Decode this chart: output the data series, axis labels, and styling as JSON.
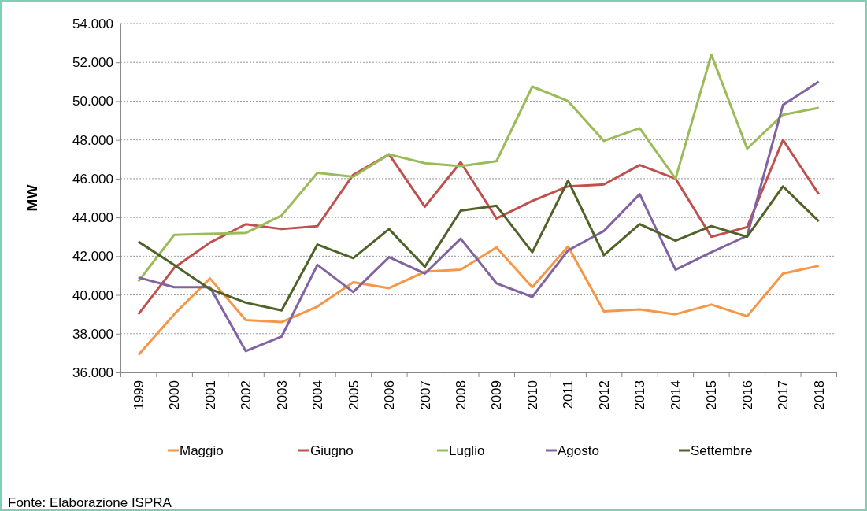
{
  "chart_data": {
    "type": "line",
    "ylabel": "MW",
    "categories": [
      "1999",
      "2000",
      "2001",
      "2002",
      "2003",
      "2004",
      "2005",
      "2006",
      "2007",
      "2008",
      "2009",
      "2010",
      "2011",
      "2012",
      "2013",
      "2014",
      "2015",
      "2016",
      "2017",
      "2018"
    ],
    "series": [
      {
        "name": "Maggio",
        "color": "#f79646",
        "values": [
          36900,
          39000,
          40850,
          38700,
          38600,
          39400,
          40650,
          40350,
          41200,
          41300,
          42450,
          40400,
          42500,
          39150,
          39250,
          39000,
          39500,
          38900,
          41100,
          41500
        ]
      },
      {
        "name": "Giugno",
        "color": "#c0504d",
        "values": [
          39000,
          41400,
          42700,
          43650,
          43400,
          43550,
          46200,
          47250,
          44550,
          46850,
          43950,
          44850,
          45600,
          45700,
          46700,
          46000,
          43000,
          43500,
          48000,
          45200
        ]
      },
      {
        "name": "Luglio",
        "color": "#9bbb59",
        "values": [
          40700,
          43100,
          43150,
          43200,
          44100,
          46300,
          46100,
          47250,
          46800,
          46650,
          46900,
          50750,
          50000,
          47950,
          48600,
          46000,
          52400,
          47550,
          49300,
          49650
        ]
      },
      {
        "name": "Agosto",
        "color": "#8064a2",
        "values": [
          40900,
          40400,
          40400,
          37100,
          37850,
          41550,
          40150,
          41950,
          41100,
          42900,
          40600,
          39900,
          42300,
          43300,
          45200,
          41300,
          42200,
          43050,
          49800,
          51000
        ]
      },
      {
        "name": "Settembre",
        "color": "#4f6228",
        "values": [
          42750,
          41550,
          40300,
          39600,
          39200,
          42600,
          41900,
          43400,
          41450,
          44350,
          44600,
          42200,
          45900,
          42050,
          43650,
          42800,
          43550,
          43000,
          45600,
          43800
        ]
      }
    ],
    "ylim": [
      36000,
      54000
    ],
    "yticks": [
      {
        "value": 36000,
        "label": "36.000"
      },
      {
        "value": 38000,
        "label": "38.000"
      },
      {
        "value": 40000,
        "label": "40.000"
      },
      {
        "value": 42000,
        "label": "42.000"
      },
      {
        "value": 44000,
        "label": "44.000"
      },
      {
        "value": 46000,
        "label": "46.000"
      },
      {
        "value": 48000,
        "label": "48.000"
      },
      {
        "value": 50000,
        "label": "50.000"
      },
      {
        "value": 52000,
        "label": "52.000"
      },
      {
        "value": 54000,
        "label": "54.000"
      }
    ],
    "grid": "y",
    "legend": "bottom",
    "marker": "none",
    "line_style": "solid",
    "annotations": [
      "Fonte: Elaborazione ISPRA"
    ]
  }
}
